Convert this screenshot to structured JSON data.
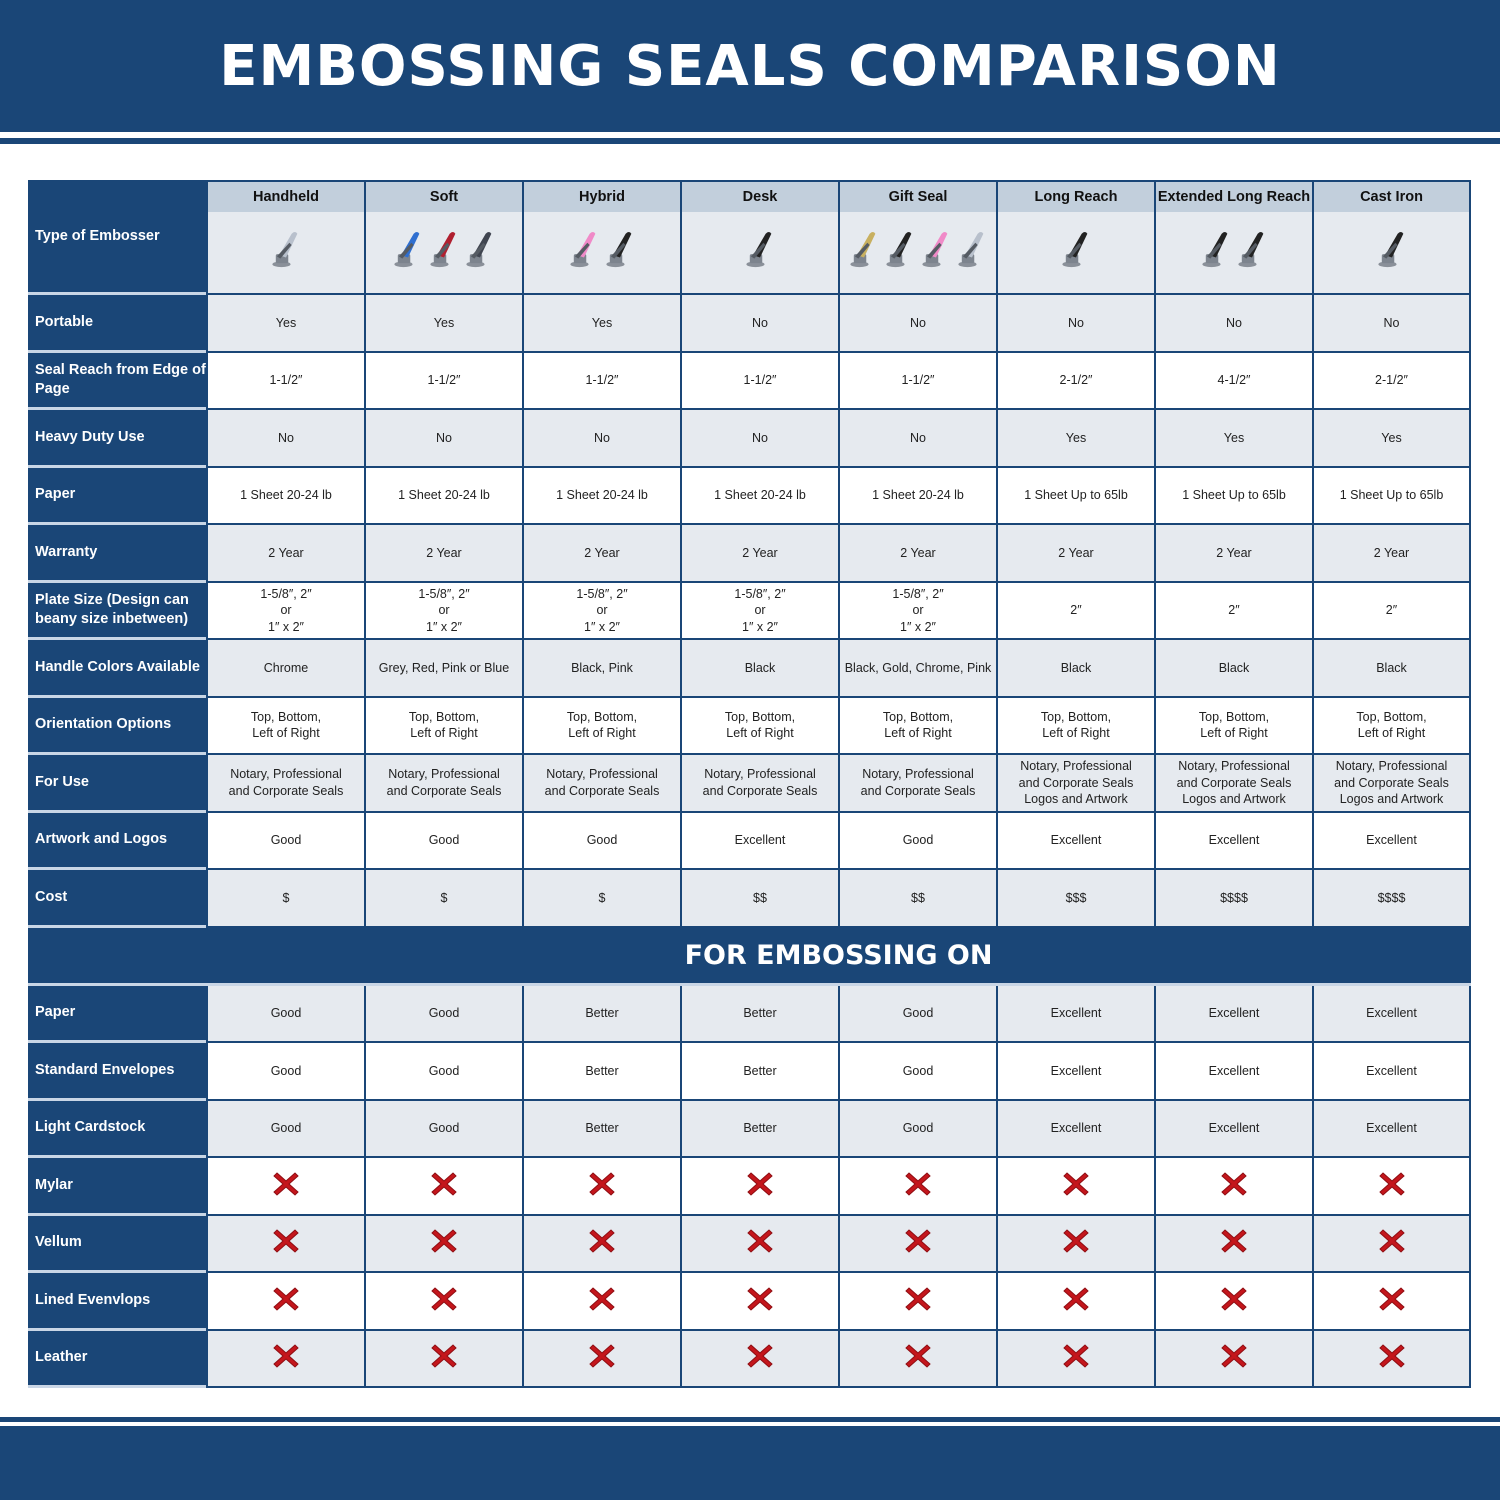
{
  "title": "EMBOSSING SEALS COMPARISON",
  "colors": {
    "brand": "#1a4677",
    "header_cell": "#c2cfdc",
    "alt_row": "#e6eaef",
    "x_mark": "#c4161c"
  },
  "type_label": "Type of Embosser",
  "columns": [
    {
      "name": "Handheld",
      "handle_colors": [
        "#b8c0cc"
      ]
    },
    {
      "name": "Soft",
      "handle_colors": [
        "#2f6fd0",
        "#b02030",
        "#404550"
      ]
    },
    {
      "name": "Hybrid",
      "handle_colors": [
        "#f08ac8",
        "#222222"
      ]
    },
    {
      "name": "Desk",
      "handle_colors": [
        "#222222"
      ]
    },
    {
      "name": "Gift Seal",
      "handle_colors": [
        "#c8b060",
        "#222222",
        "#f08ac8",
        "#b8c0cc"
      ]
    },
    {
      "name": "Long Reach",
      "handle_colors": [
        "#222222"
      ]
    },
    {
      "name": "Extended Long Reach",
      "handle_colors": [
        "#222222",
        "#222222"
      ]
    },
    {
      "name": "Cast Iron",
      "handle_colors": [
        "#222222"
      ]
    }
  ],
  "rows": [
    {
      "label": "Portable",
      "values": [
        "Yes",
        "Yes",
        "Yes",
        "No",
        "No",
        "No",
        "No",
        "No"
      ]
    },
    {
      "label": "Seal Reach from Edge of Page",
      "values": [
        "1-1/2″",
        "1-1/2″",
        "1-1/2″",
        "1-1/2″",
        "1-1/2″",
        "2-1/2″",
        "4-1/2″",
        "2-1/2″"
      ]
    },
    {
      "label": "Heavy Duty Use",
      "values": [
        "No",
        "No",
        "No",
        "No",
        "No",
        "Yes",
        "Yes",
        "Yes"
      ]
    },
    {
      "label": "Paper",
      "values": [
        "1 Sheet 20-24 lb",
        "1 Sheet 20-24 lb",
        "1 Sheet 20-24 lb",
        "1 Sheet 20-24 lb",
        "1 Sheet 20-24 lb",
        "1 Sheet Up to 65lb",
        "1 Sheet Up to 65lb",
        "1 Sheet Up to 65lb"
      ]
    },
    {
      "label": "Warranty",
      "values": [
        "2 Year",
        "2 Year",
        "2 Year",
        "2 Year",
        "2 Year",
        "2 Year",
        "2 Year",
        "2 Year"
      ]
    },
    {
      "label": "Plate Size (Design can beany size inbetween)",
      "values": [
        "1-5/8″, 2″\nor\n1″ x 2″",
        "1-5/8″, 2″\nor\n1″ x 2″",
        "1-5/8″, 2″\nor\n1″ x 2″",
        "1-5/8″, 2″\nor\n1″ x 2″",
        "1-5/8″, 2″\nor\n1″ x 2″",
        "2″",
        "2″",
        "2″"
      ]
    },
    {
      "label": "Handle Colors Available",
      "values": [
        "Chrome",
        "Grey, Red, Pink or Blue",
        "Black, Pink",
        "Black",
        "Black, Gold, Chrome, Pink",
        "Black",
        "Black",
        "Black"
      ]
    },
    {
      "label": "Orientation Options",
      "values": [
        "Top, Bottom,\nLeft of Right",
        "Top, Bottom,\nLeft of Right",
        "Top, Bottom,\nLeft of Right",
        "Top, Bottom,\nLeft of Right",
        "Top, Bottom,\nLeft of Right",
        "Top, Bottom,\nLeft of Right",
        "Top, Bottom,\nLeft of Right",
        "Top, Bottom,\nLeft of Right"
      ]
    },
    {
      "label": "For Use",
      "values": [
        "Notary, Professional\nand Corporate Seals",
        "Notary, Professional\nand Corporate Seals",
        "Notary, Professional\nand Corporate Seals",
        "Notary, Professional\nand Corporate Seals",
        "Notary, Professional\nand Corporate Seals",
        "Notary, Professional\nand Corporate Seals\nLogos and Artwork",
        "Notary, Professional\nand Corporate Seals\nLogos and Artwork",
        "Notary, Professional\nand Corporate Seals\nLogos and Artwork"
      ]
    },
    {
      "label": "Artwork and Logos",
      "values": [
        "Good",
        "Good",
        "Good",
        "Excellent",
        "Good",
        "Excellent",
        "Excellent",
        "Excellent"
      ]
    },
    {
      "label": "Cost",
      "values": [
        "$",
        "$",
        "$",
        "$$",
        "$$",
        "$$$",
        "$$$$",
        "$$$$"
      ]
    }
  ],
  "section_title": "FOR EMBOSSING ON",
  "embossing_rows": [
    {
      "label": "Paper",
      "values": [
        "Good",
        "Good",
        "Better",
        "Better",
        "Good",
        "Excellent",
        "Excellent",
        "Excellent"
      ]
    },
    {
      "label": "Standard Envelopes",
      "values": [
        "Good",
        "Good",
        "Better",
        "Better",
        "Good",
        "Excellent",
        "Excellent",
        "Excellent"
      ]
    },
    {
      "label": "Light Cardstock",
      "values": [
        "Good",
        "Good",
        "Better",
        "Better",
        "Good",
        "Excellent",
        "Excellent",
        "Excellent"
      ]
    },
    {
      "label": "Mylar",
      "values": [
        "x-icon",
        "x-icon",
        "x-icon",
        "x-icon",
        "x-icon",
        "x-icon",
        "x-icon",
        "x-icon"
      ]
    },
    {
      "label": "Vellum",
      "values": [
        "x-icon",
        "x-icon",
        "x-icon",
        "x-icon",
        "x-icon",
        "x-icon",
        "x-icon",
        "x-icon"
      ]
    },
    {
      "label": "Lined Evenvlops",
      "values": [
        "x-icon",
        "x-icon",
        "x-icon",
        "x-icon",
        "x-icon",
        "x-icon",
        "x-icon",
        "x-icon"
      ]
    },
    {
      "label": "Leather",
      "values": [
        "x-icon",
        "x-icon",
        "x-icon",
        "x-icon",
        "x-icon",
        "x-icon",
        "x-icon",
        "x-icon"
      ]
    }
  ]
}
